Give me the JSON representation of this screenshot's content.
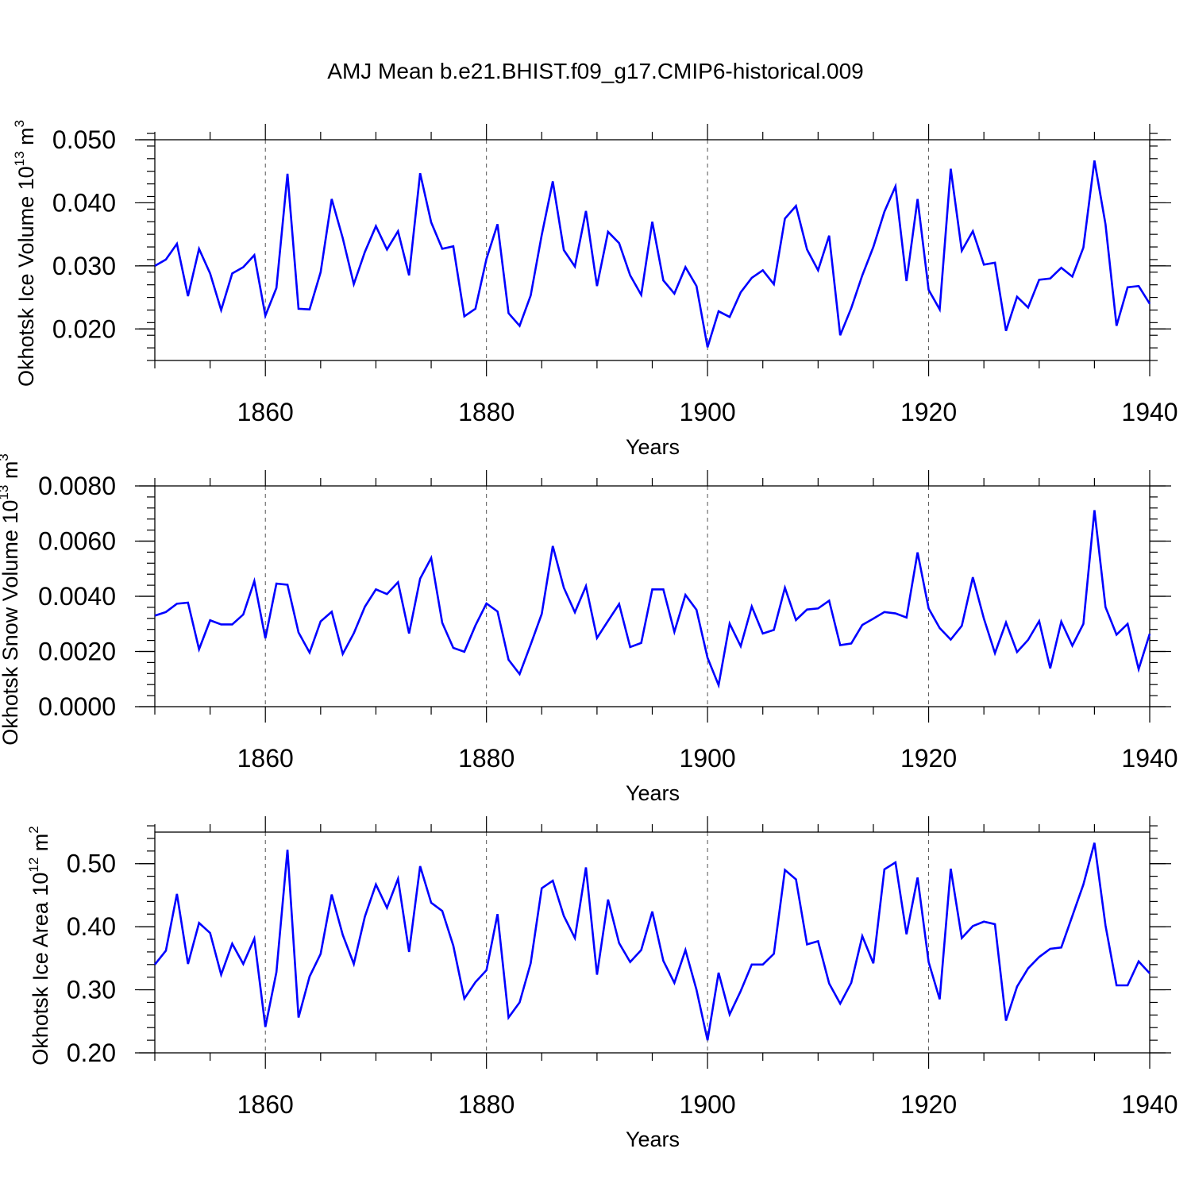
{
  "page": {
    "title": "AMJ Mean b.e21.BHIST.f09_g17.CMIP6-historical.009"
  },
  "colors": {
    "series": "#0000ff",
    "axis": "#000000",
    "grid": "#555555"
  },
  "chart_data": [
    {
      "type": "line",
      "title": "AMJ Mean b.e21.BHIST.f09_g17.CMIP6-historical.009",
      "xlabel": "Years",
      "ylabel": "Okhotsk Ice Volume 10",
      "ylabel_sup1": "13",
      "ylabel_unit": " m",
      "ylabel_sup2": "3",
      "xlim": [
        1850,
        1940
      ],
      "ylim": [
        0.015,
        0.05
      ],
      "xticks": [
        1860,
        1880,
        1900,
        1920,
        1940
      ],
      "xtick_labels": [
        "1860",
        "1880",
        "1900",
        "1920",
        "1940"
      ],
      "yticks": [
        0.02,
        0.03,
        0.04,
        0.05
      ],
      "ytick_labels": [
        "0.020",
        "0.030",
        "0.040",
        "0.050"
      ],
      "ymin_step": 0.002,
      "x_start": 1850,
      "series": [
        {
          "name": "Okhotsk Ice Volume",
          "values": [
            0.03,
            0.031,
            0.0335,
            0.0252,
            0.0327,
            0.0288,
            0.023,
            0.0288,
            0.0298,
            0.0317,
            0.0221,
            0.0265,
            0.0446,
            0.0232,
            0.0231,
            0.029,
            0.0406,
            0.0344,
            0.0271,
            0.0322,
            0.0363,
            0.0326,
            0.0355,
            0.0285,
            0.0447,
            0.0369,
            0.0327,
            0.0331,
            0.022,
            0.0232,
            0.0311,
            0.0366,
            0.0225,
            0.0205,
            0.0253,
            0.0349,
            0.0434,
            0.0325,
            0.0299,
            0.0387,
            0.0268,
            0.0354,
            0.0336,
            0.0285,
            0.0254,
            0.037,
            0.0277,
            0.0256,
            0.0298,
            0.0268,
            0.0171,
            0.0228,
            0.0219,
            0.0258,
            0.0281,
            0.0293,
            0.0271,
            0.0375,
            0.0395,
            0.0326,
            0.0293,
            0.0348,
            0.019,
            0.0233,
            0.0285,
            0.033,
            0.0386,
            0.0426,
            0.0276,
            0.0406,
            0.0262,
            0.0231,
            0.0454,
            0.0324,
            0.0355,
            0.0302,
            0.0305,
            0.0197,
            0.0251,
            0.0234,
            0.0278,
            0.028,
            0.0297,
            0.0283,
            0.0329,
            0.0467,
            0.0366,
            0.0205,
            0.0266,
            0.0268,
            0.024
          ]
        }
      ]
    },
    {
      "type": "line",
      "xlabel": "Years",
      "ylabel": "Okhotsk Snow Volume 10",
      "ylabel_sup1": "13",
      "ylabel_unit": " m",
      "ylabel_sup2": "3",
      "xlim": [
        1850,
        1940
      ],
      "ylim": [
        0.0,
        0.008
      ],
      "xticks": [
        1860,
        1880,
        1900,
        1920,
        1940
      ],
      "xtick_labels": [
        "1860",
        "1880",
        "1900",
        "1920",
        "1940"
      ],
      "yticks": [
        0.0,
        0.002,
        0.004,
        0.006,
        0.008
      ],
      "ytick_labels": [
        "0.0000",
        "0.0020",
        "0.0040",
        "0.0060",
        "0.0080"
      ],
      "ymin_step": 0.0004,
      "x_start": 1850,
      "series": [
        {
          "name": "Okhotsk Snow Volume",
          "values": [
            0.0033,
            0.00343,
            0.00373,
            0.00377,
            0.00208,
            0.00313,
            0.00298,
            0.00298,
            0.00334,
            0.00455,
            0.00248,
            0.00446,
            0.00442,
            0.00269,
            0.00196,
            0.00309,
            0.00344,
            0.00191,
            0.00266,
            0.00362,
            0.00425,
            0.00408,
            0.00451,
            0.00265,
            0.00464,
            0.00539,
            0.00304,
            0.00213,
            0.00199,
            0.00294,
            0.00374,
            0.00345,
            0.0017,
            0.00118,
            0.00225,
            0.00336,
            0.00582,
            0.00431,
            0.00342,
            0.00437,
            0.00249,
            0.00311,
            0.00372,
            0.00216,
            0.00231,
            0.00425,
            0.00425,
            0.00271,
            0.00405,
            0.00351,
            0.00177,
            0.00078,
            0.00301,
            0.00219,
            0.00363,
            0.00265,
            0.00278,
            0.00431,
            0.00314,
            0.00352,
            0.00356,
            0.00384,
            0.00223,
            0.00229,
            0.00296,
            0.00319,
            0.00343,
            0.00338,
            0.00323,
            0.00559,
            0.00356,
            0.00285,
            0.00243,
            0.00293,
            0.00469,
            0.00319,
            0.00194,
            0.00305,
            0.00198,
            0.00242,
            0.0031,
            0.00139,
            0.00308,
            0.00221,
            0.003,
            0.00712,
            0.00361,
            0.00261,
            0.003,
            0.00136,
            0.00264
          ]
        }
      ]
    },
    {
      "type": "line",
      "xlabel": "Years",
      "ylabel": "Okhotsk Ice Area 10",
      "ylabel_sup1": "12",
      "ylabel_unit": " m",
      "ylabel_sup2": "2",
      "xlim": [
        1850,
        1940
      ],
      "ylim": [
        0.2,
        0.55
      ],
      "xticks": [
        1860,
        1880,
        1900,
        1920,
        1940
      ],
      "xtick_labels": [
        "1860",
        "1880",
        "1900",
        "1920",
        "1940"
      ],
      "yticks": [
        0.2,
        0.3,
        0.4,
        0.5
      ],
      "ytick_labels": [
        "0.20",
        "0.30",
        "0.40",
        "0.50"
      ],
      "ymin_step": 0.02,
      "x_start": 1850,
      "series": [
        {
          "name": "Okhotsk Ice Area",
          "values": [
            0.34,
            0.362,
            0.452,
            0.341,
            0.406,
            0.39,
            0.324,
            0.373,
            0.341,
            0.381,
            0.241,
            0.328,
            0.522,
            0.256,
            0.321,
            0.357,
            0.451,
            0.387,
            0.341,
            0.416,
            0.467,
            0.43,
            0.476,
            0.36,
            0.496,
            0.438,
            0.425,
            0.37,
            0.286,
            0.312,
            0.331,
            0.42,
            0.256,
            0.28,
            0.342,
            0.461,
            0.473,
            0.417,
            0.382,
            0.494,
            0.324,
            0.443,
            0.374,
            0.344,
            0.363,
            0.424,
            0.346,
            0.311,
            0.363,
            0.3,
            0.22,
            0.327,
            0.261,
            0.298,
            0.34,
            0.34,
            0.357,
            0.49,
            0.475,
            0.372,
            0.377,
            0.31,
            0.278,
            0.311,
            0.385,
            0.342,
            0.491,
            0.502,
            0.388,
            0.478,
            0.344,
            0.285,
            0.492,
            0.382,
            0.401,
            0.408,
            0.404,
            0.251,
            0.305,
            0.334,
            0.352,
            0.365,
            0.367,
            0.417,
            0.467,
            0.533,
            0.402,
            0.307,
            0.307,
            0.345,
            0.326
          ]
        }
      ]
    }
  ]
}
